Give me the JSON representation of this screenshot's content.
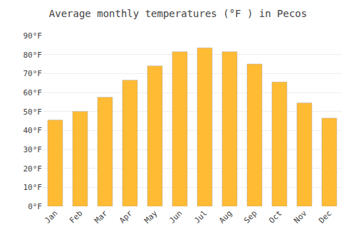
{
  "chart_data": {
    "type": "bar",
    "title": "Average monthly temperatures (°F ) in Pecos",
    "categories": [
      "Jan",
      "Feb",
      "Mar",
      "Apr",
      "May",
      "Jun",
      "Jul",
      "Aug",
      "Sep",
      "Oct",
      "Nov",
      "Dec"
    ],
    "values": [
      45.5,
      50.0,
      57.5,
      66.5,
      74.0,
      81.5,
      83.5,
      81.5,
      75.0,
      65.5,
      54.5,
      46.5
    ],
    "color": "#FFBB33",
    "ylim": [
      0,
      90
    ],
    "yticks": [
      {
        "value": 0,
        "label": "0°F"
      },
      {
        "value": 10,
        "label": "10°F"
      },
      {
        "value": 20,
        "label": "20°F"
      },
      {
        "value": 30,
        "label": "30°F"
      },
      {
        "value": 40,
        "label": "40°F"
      },
      {
        "value": 50,
        "label": "50°F"
      },
      {
        "value": 60,
        "label": "60°F"
      },
      {
        "value": 70,
        "label": "70°F"
      },
      {
        "value": 80,
        "label": "80°F"
      },
      {
        "value": 90,
        "label": "90°F"
      }
    ],
    "grid": true
  }
}
